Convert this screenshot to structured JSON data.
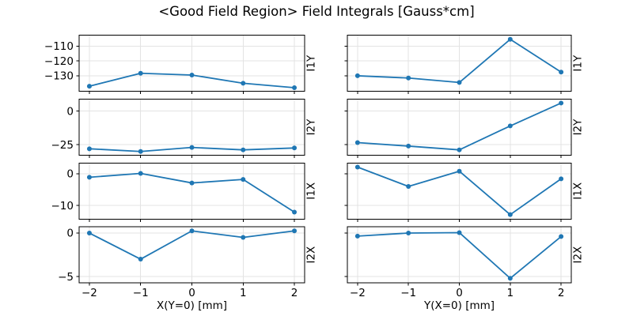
{
  "chart_data": {
    "type": "line",
    "title": "<Good Field Region> Field Integrals [Gauss*cm]",
    "units": "Gauss*cm",
    "grid": true,
    "legend": "none",
    "line_color": "#1f77b4",
    "grid_color": "#e3e3e3",
    "marker": "circle",
    "x": [
      -2,
      -1,
      0,
      1,
      2
    ],
    "xticks": [
      -2,
      -1,
      0,
      1,
      2
    ],
    "xlim": [
      -2.2,
      2.2
    ],
    "columns": [
      {
        "xlabel": "X(Y=0) [mm]"
      },
      {
        "xlabel": "Y(X=0) [mm]"
      }
    ],
    "rows": [
      {
        "ylabel": "I1Y",
        "yticks": [
          -110,
          -120,
          -130
        ],
        "ylim": [
          -140.5,
          -102.8
        ],
        "series": [
          {
            "name": "I1Y vs X(Y=0)",
            "values": [
              -137,
              -128.3,
              -129.5,
              -135,
              -138
            ]
          },
          {
            "name": "I1Y vs Y(X=0)",
            "values": [
              -130,
              -131.5,
              -134.5,
              -105.5,
              -127.5
            ]
          }
        ]
      },
      {
        "ylabel": "I2Y",
        "yticks": [
          0,
          -25
        ],
        "ylim": [
          -32.8,
          8.9
        ],
        "series": [
          {
            "name": "I2Y vs X(Y=0)",
            "values": [
              -28,
              -30,
              -27,
              -28.8,
              -27.4
            ]
          },
          {
            "name": "I2Y vs Y(X=0)",
            "values": [
              -23.4,
              -26,
              -28.8,
              -11,
              6
            ]
          }
        ]
      },
      {
        "ylabel": "I1X",
        "yticks": [
          0,
          -10
        ],
        "ylim": [
          -14.3,
          3.4
        ],
        "series": [
          {
            "name": "I1X vs X(Y=0)",
            "values": [
              -1.1,
              0.1,
              -2.9,
              -1.8,
              -12.1
            ]
          },
          {
            "name": "I1X vs Y(X=0)",
            "values": [
              2.1,
              -4.0,
              0.8,
              -12.9,
              -1.6
            ]
          }
        ]
      },
      {
        "ylabel": "I2X",
        "yticks": [
          0,
          -5
        ],
        "ylim": [
          -5.73,
          0.72
        ],
        "series": [
          {
            "name": "I2X vs X(Y=0)",
            "values": [
              0.0,
              -3.0,
              0.25,
              -0.5,
              0.25
            ]
          },
          {
            "name": "I2X vs Y(X=0)",
            "values": [
              -0.35,
              0.0,
              0.05,
              -5.2,
              -0.4
            ]
          }
        ]
      }
    ]
  }
}
